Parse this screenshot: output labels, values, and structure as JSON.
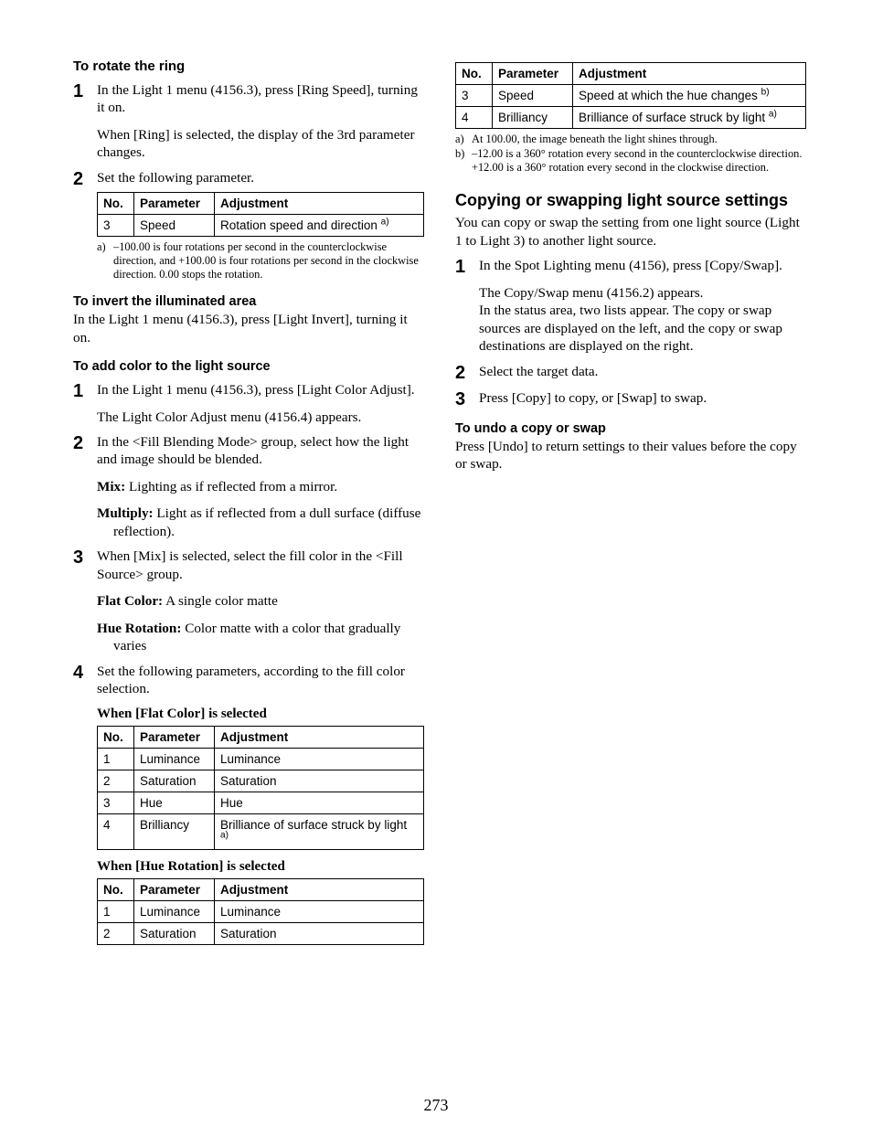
{
  "page_number": "273",
  "left": {
    "rotate_head": "To rotate the ring",
    "rotate_steps": [
      {
        "n": "1",
        "paras": [
          "In the Light 1 menu (4156.3), press [Ring Speed], turning it on.",
          "When [Ring] is selected, the display of the 3rd parameter changes."
        ]
      },
      {
        "n": "2",
        "paras": [
          "Set the following parameter."
        ]
      }
    ],
    "table_headers": {
      "no": "No.",
      "param": "Parameter",
      "adj": "Adjustment"
    },
    "rotate_table": [
      {
        "no": "3",
        "param": "Speed",
        "adj": "Rotation speed and direction",
        "sup": "a)"
      }
    ],
    "rotate_footnotes": [
      {
        "label": "a)",
        "text": "–100.00 is four rotations per second in the counterclockwise direction, and +100.00 is four rotations per second in the clockwise direction. 0.00 stops the rotation."
      }
    ],
    "invert_head": "To invert the illuminated area",
    "invert_text": "In the Light 1 menu (4156.3), press [Light Invert], turning it on.",
    "color_head": "To add color to the light source",
    "color_steps": [
      {
        "n": "1",
        "paras": [
          "In the Light 1 menu (4156.3), press [Light Color Adjust].",
          "The Light Color Adjust menu (4156.4) appears."
        ]
      },
      {
        "n": "2",
        "paras": [
          "In the <Fill Blending Mode> group, select how the light and image should be blended."
        ],
        "defs": [
          {
            "term": "Mix:",
            "text": " Lighting as if reflected from a mirror."
          },
          {
            "term": "Multiply:",
            "text": " Light as if reflected from a dull surface (diffuse reflection)."
          }
        ]
      },
      {
        "n": "3",
        "paras": [
          "When [Mix] is selected, select the fill color in the <Fill Source> group."
        ],
        "defs": [
          {
            "term": "Flat Color:",
            "text": " A single color matte"
          },
          {
            "term": "Hue Rotation:",
            "text": " Color matte with a color that gradually varies"
          }
        ]
      },
      {
        "n": "4",
        "paras": [
          "Set the following parameters, according to the fill color selection."
        ]
      }
    ],
    "flat_caption": "When [Flat Color] is selected",
    "flat_table": [
      {
        "no": "1",
        "param": "Luminance",
        "adj": "Luminance"
      },
      {
        "no": "2",
        "param": "Saturation",
        "adj": "Saturation"
      },
      {
        "no": "3",
        "param": "Hue",
        "adj": "Hue"
      },
      {
        "no": "4",
        "param": "Brilliancy",
        "adj": "Brilliance of surface struck by light",
        "sup": "a)"
      }
    ],
    "hue_caption": "When [Hue Rotation] is selected",
    "hue_table": [
      {
        "no": "1",
        "param": "Luminance",
        "adj": "Luminance"
      },
      {
        "no": "2",
        "param": "Saturation",
        "adj": "Saturation"
      }
    ]
  },
  "right": {
    "cont_table": [
      {
        "no": "3",
        "param": "Speed",
        "adj": "Speed at which the hue changes",
        "sup": "b)"
      },
      {
        "no": "4",
        "param": "Brilliancy",
        "adj": "Brilliance of surface struck by light",
        "sup": "a)"
      }
    ],
    "cont_footnotes": [
      {
        "label": "a)",
        "text": "At 100.00, the image beneath the light shines through."
      },
      {
        "label": "b)",
        "text": "–12.00 is a 360° rotation every second in the counterclockwise direction. +12.00 is a 360° rotation every second in the clockwise direction."
      }
    ],
    "copy_head": "Copying or swapping light source settings",
    "copy_intro": "You can copy or swap the setting from one light source (Light 1 to Light 3) to another light source.",
    "copy_steps": [
      {
        "n": "1",
        "paras": [
          "In the Spot Lighting menu (4156), press [Copy/Swap].",
          "The Copy/Swap menu (4156.2) appears.\nIn the status area, two lists appear. The copy or swap sources are displayed on the left, and the copy or swap destinations are displayed on the right."
        ]
      },
      {
        "n": "2",
        "paras": [
          "Select the target data."
        ]
      },
      {
        "n": "3",
        "paras": [
          "Press [Copy] to copy, or [Swap] to swap."
        ]
      }
    ],
    "undo_head": "To undo a copy or swap",
    "undo_text": "Press [Undo] to return settings to their values before the copy or swap."
  }
}
